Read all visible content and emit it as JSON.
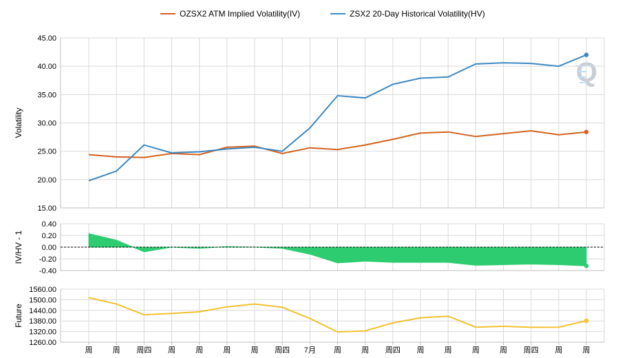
{
  "chart_data": [
    {
      "type": "line",
      "panel": "volatility",
      "ylabel": "Volatility",
      "ylim": [
        15,
        45
      ],
      "yticks": [
        "15.00",
        "20.00",
        "25.00",
        "30.00",
        "35.00",
        "40.00",
        "45.00"
      ],
      "grid": true,
      "legend_position": "top-center",
      "series": [
        {
          "name": "OZSX2 ATM Implied Volatility(IV)",
          "color": "#d2611c",
          "values": [
            24.4,
            24.0,
            23.9,
            24.6,
            24.4,
            25.7,
            25.9,
            24.6,
            25.6,
            25.3,
            26.1,
            27.1,
            28.2,
            28.4,
            27.6,
            28.1,
            28.6,
            27.9,
            28.4
          ]
        },
        {
          "name": "ZSX2 20-Day Historical Volatility(HV)",
          "color": "#3d88c1",
          "values": [
            19.8,
            21.5,
            26.1,
            24.7,
            24.9,
            25.4,
            25.7,
            25.0,
            29.1,
            34.8,
            34.4,
            36.8,
            37.9,
            38.1,
            40.4,
            40.6,
            40.5,
            40.0,
            42.0
          ]
        }
      ]
    },
    {
      "type": "area",
      "panel": "iv_hv",
      "ylabel": "IV/HV - 1",
      "ylim": [
        -0.4,
        0.4
      ],
      "yticks": [
        "-0.40",
        "-0.20",
        "0.00",
        "0.20",
        "0.40"
      ],
      "color": "#2ecc71",
      "values": [
        0.23,
        0.12,
        -0.08,
        0.0,
        -0.02,
        0.01,
        0.0,
        -0.02,
        -0.12,
        -0.27,
        -0.24,
        -0.26,
        -0.26,
        -0.26,
        -0.31,
        -0.3,
        -0.29,
        -0.3,
        -0.32
      ]
    },
    {
      "type": "line",
      "panel": "future",
      "ylabel": "Future",
      "ylim": [
        1260,
        1560
      ],
      "yticks": [
        "1260.00",
        "1320.00",
        "1380.00",
        "1440.00",
        "1500.00",
        "1560.00"
      ],
      "color": "#f2c12e",
      "values": [
        1512,
        1476,
        1415,
        1423,
        1432,
        1460,
        1476,
        1457,
        1394,
        1318,
        1324,
        1369,
        1398,
        1407,
        1345,
        1350,
        1344,
        1345,
        1381
      ]
    }
  ],
  "x_labels": [
    "周",
    "周",
    "周四",
    "周",
    "周",
    "周",
    "周",
    "周四",
    "7月",
    "周",
    "周",
    "周四",
    "周",
    "周",
    "周",
    "周",
    "周四",
    "周",
    "周"
  ]
}
